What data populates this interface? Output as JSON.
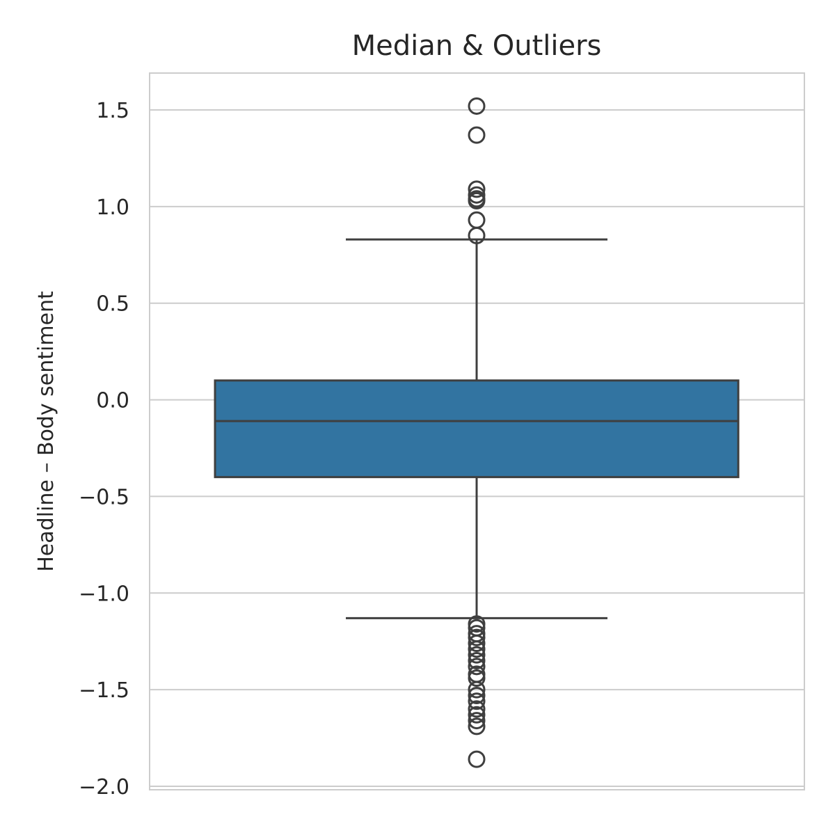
{
  "chart_data": {
    "type": "box",
    "title": "Median & Outliers",
    "xlabel": "",
    "ylabel": "Headline – Body sentiment",
    "ylim": [
      -2.05,
      1.68
    ],
    "yticks": [
      1.5,
      1.0,
      0.5,
      0.0,
      -0.5,
      -1.0,
      -1.5,
      -2.0
    ],
    "ytick_labels": [
      "1.5",
      "1.0",
      "0.5",
      "0.0",
      "−0.5",
      "−1.0",
      "−1.5",
      "−2.0"
    ],
    "grid": true,
    "box": {
      "q1": -0.4,
      "median": -0.11,
      "q3": 0.1,
      "whisker_low": -1.13,
      "whisker_high": 0.83
    },
    "outliers": [
      1.52,
      1.37,
      1.09,
      1.06,
      1.04,
      1.03,
      0.93,
      0.85,
      -1.16,
      -1.18,
      -1.21,
      -1.23,
      -1.26,
      -1.29,
      -1.32,
      -1.35,
      -1.38,
      -1.42,
      -1.44,
      -1.5,
      -1.53,
      -1.56,
      -1.6,
      -1.63,
      -1.66,
      -1.69,
      -1.86
    ],
    "colors": {
      "box_fill": "#3274a1",
      "line": "#3f3f3f",
      "grid": "#cccccc",
      "spine": "#cccccc",
      "text": "#262626"
    }
  }
}
